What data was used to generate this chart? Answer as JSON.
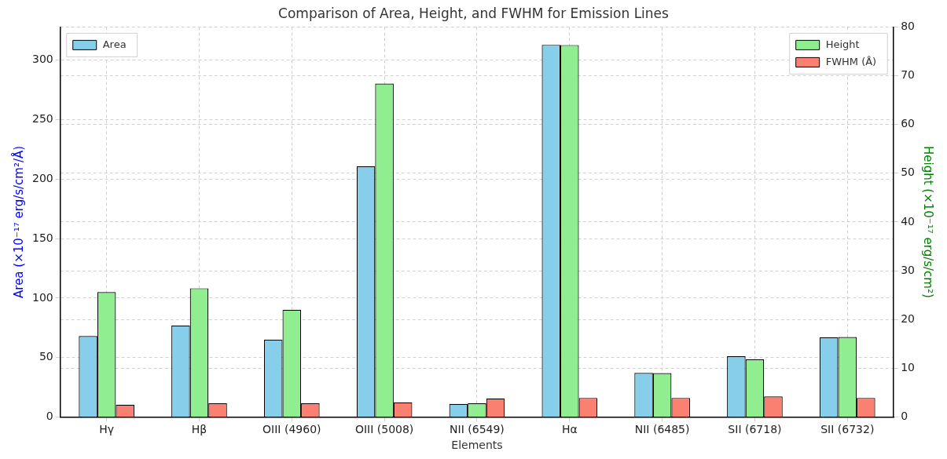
{
  "chart_data": {
    "type": "bar",
    "title": "Comparison of Area, Height, and FWHM for Emission Lines",
    "xlabel": "Elements",
    "ylabel": "Area (×10⁻¹⁷ erg/s/cm²/Å)",
    "y2label": "Height (×10⁻¹⁷ erg/s/cm²)",
    "categories": [
      "Hγ",
      "Hβ",
      "OIII (4960)",
      "OIII (5008)",
      "NII (6549)",
      "Hα",
      "NII (6485)",
      "SII (6718)",
      "SII (6732)"
    ],
    "series": [
      {
        "name": "Area",
        "color": "#87ceeb",
        "values": [
          68,
          77,
          65,
          211,
          11,
          313,
          37,
          51,
          67
        ]
      },
      {
        "name": "Height",
        "color": "#90ee90",
        "axis": "y2",
        "values": [
          25.6,
          26.4,
          22,
          68.4,
          2.8,
          76.3,
          9,
          11.8,
          16.4
        ]
      },
      {
        "name": "FWHM (Å)",
        "color": "#fa8072",
        "axis": "y2",
        "values": [
          2.5,
          2.8,
          2.8,
          3,
          3.8,
          3.9,
          3.9,
          4.2,
          3.9
        ]
      }
    ],
    "ylim": [
      0,
      328
    ],
    "yticks": [
      0,
      50,
      100,
      150,
      200,
      250,
      300
    ],
    "y2lim": [
      0,
      80
    ],
    "y2ticks": [
      0,
      10,
      20,
      30,
      40,
      50,
      60,
      70,
      80
    ],
    "grid": true,
    "legend": "top"
  }
}
